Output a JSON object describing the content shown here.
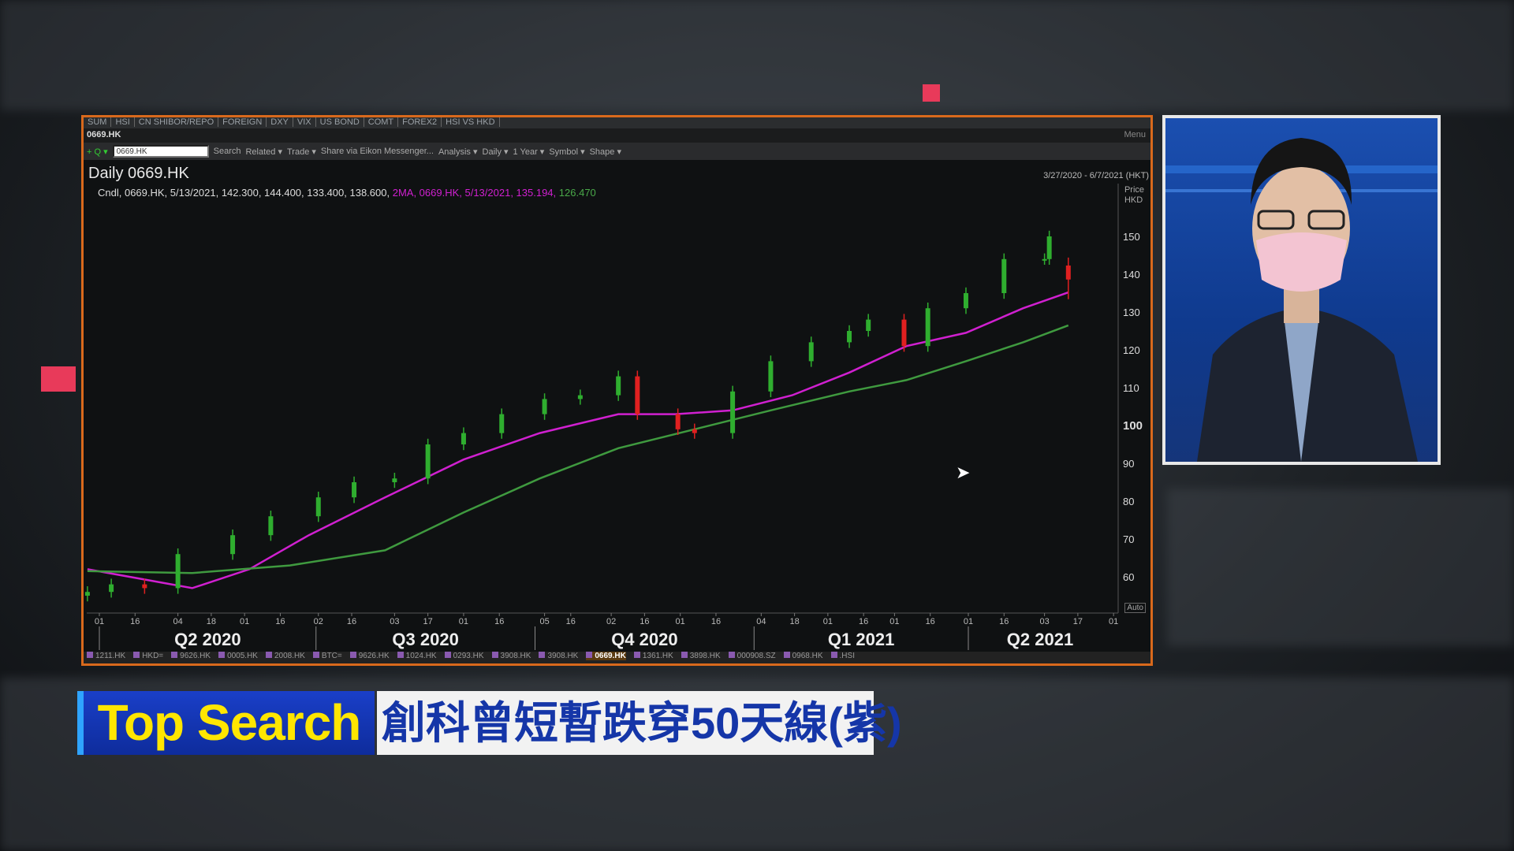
{
  "top_tabs": [
    "SUM",
    "HSI",
    "CN SHIBOR/REPO",
    "FOREIGN",
    "DXY",
    "VIX",
    "US BOND",
    "COMT",
    "FOREX2",
    "HSI VS HKD"
  ],
  "window_title": "0669.HK",
  "menu_label": "Menu",
  "toolbar": {
    "ric_value": "0669.HK",
    "items": [
      "Search",
      "Related ▾",
      "Trade ▾",
      "Share via Eikon Messenger...",
      "Analysis ▾",
      "Daily ▾",
      "1 Year ▾",
      "Symbol ▾",
      "Shape ▾"
    ]
  },
  "chart_title": "Daily 0669.HK",
  "date_range": "3/27/2020 - 6/7/2021 (HKT)",
  "legend": {
    "candle": "Cndl, 0669.HK, 5/13/2021, 142.300, 144.400, 133.400, 138.600,",
    "ma": "2MA, 0669.HK, 5/13/2021, 135.194,",
    "ma2": "126.470"
  },
  "price_header": [
    "Price",
    "HKD"
  ],
  "auto_label": "Auto",
  "bottom_tabs": [
    "1211.HK",
    "HKD=",
    "9626.HK",
    "0005.HK",
    "2008.HK",
    "BTC=",
    "9626.HK",
    "1024.HK",
    "0293.HK",
    "3908.HK",
    "3908.HK",
    "0669.HK",
    "1361.HK",
    "3898.HK",
    "000908.SZ",
    "0968.HK",
    ".HSI"
  ],
  "active_bottom_tab": "0669.HK",
  "caption": {
    "brand": "Top Search",
    "headline": "創科曾短暫跌穿50天線(紫)"
  },
  "chart_data": {
    "type": "candlestick",
    "ticker": "0669.HK",
    "ylim": [
      50,
      164
    ],
    "yticks": [
      60,
      70,
      80,
      90,
      100,
      110,
      120,
      130,
      140,
      150
    ],
    "quarters": [
      {
        "label": "Q2 2020",
        "start": "2020-04-01"
      },
      {
        "label": "Q3 2020",
        "start": "2020-07-01"
      },
      {
        "label": "Q4 2020",
        "start": "2020-10-01"
      },
      {
        "label": "Q1 2021",
        "start": "2021-01-01"
      },
      {
        "label": "Q2 2021",
        "start": "2021-04-01"
      }
    ],
    "xticks": [
      [
        "2020-04-01",
        "01"
      ],
      [
        "2020-04-16",
        "16"
      ],
      [
        "2020-05-04",
        "04"
      ],
      [
        "2020-05-18",
        "18"
      ],
      [
        "2020-06-01",
        "01"
      ],
      [
        "2020-06-16",
        "16"
      ],
      [
        "2020-07-02",
        "02"
      ],
      [
        "2020-07-16",
        "16"
      ],
      [
        "2020-08-03",
        "03"
      ],
      [
        "2020-08-17",
        "17"
      ],
      [
        "2020-09-01",
        "01"
      ],
      [
        "2020-09-16",
        "16"
      ],
      [
        "2020-10-05",
        "05"
      ],
      [
        "2020-10-16",
        "16"
      ],
      [
        "2020-11-02",
        "02"
      ],
      [
        "2020-11-16",
        "16"
      ],
      [
        "2020-12-01",
        "01"
      ],
      [
        "2020-12-16",
        "16"
      ],
      [
        "2021-01-04",
        "04"
      ],
      [
        "2021-01-18",
        "18"
      ],
      [
        "2021-02-01",
        "01"
      ],
      [
        "2021-02-16",
        "16"
      ],
      [
        "2021-03-01",
        "01"
      ],
      [
        "2021-03-16",
        "16"
      ],
      [
        "2021-04-01",
        "01"
      ],
      [
        "2021-04-16",
        "16"
      ],
      [
        "2021-05-03",
        "03"
      ],
      [
        "2021-05-17",
        "17"
      ],
      [
        "2021-06-01",
        "01"
      ]
    ],
    "closes": [
      [
        "2020-03-27",
        56
      ],
      [
        "2020-04-06",
        58
      ],
      [
        "2020-04-20",
        57
      ],
      [
        "2020-05-04",
        66
      ],
      [
        "2020-05-27",
        71
      ],
      [
        "2020-06-12",
        76
      ],
      [
        "2020-07-02",
        81
      ],
      [
        "2020-07-17",
        85
      ],
      [
        "2020-08-03",
        86
      ],
      [
        "2020-08-17",
        95
      ],
      [
        "2020-09-01",
        98
      ],
      [
        "2020-09-17",
        103
      ],
      [
        "2020-10-05",
        107
      ],
      [
        "2020-10-20",
        108
      ],
      [
        "2020-11-05",
        113
      ],
      [
        "2020-11-13",
        103
      ],
      [
        "2020-11-30",
        99
      ],
      [
        "2020-12-07",
        98
      ],
      [
        "2020-12-23",
        109
      ],
      [
        "2021-01-08",
        117
      ],
      [
        "2021-01-25",
        122
      ],
      [
        "2021-02-10",
        125
      ],
      [
        "2021-02-18",
        128
      ],
      [
        "2021-03-05",
        121
      ],
      [
        "2021-03-15",
        131
      ],
      [
        "2021-03-31",
        135
      ],
      [
        "2021-04-16",
        144
      ],
      [
        "2021-05-03",
        144
      ],
      [
        "2021-05-05",
        150
      ]
    ],
    "last_candle": {
      "date": "2021-05-13",
      "open": 142.3,
      "high": 144.4,
      "low": 133.4,
      "close": 138.6
    },
    "series": [
      {
        "color": "#d020d0",
        "values": [
          [
            "2020-03-27",
            62
          ],
          [
            "2020-05-10",
            57
          ],
          [
            "2020-06-03",
            62
          ],
          [
            "2020-06-28",
            71
          ],
          [
            "2020-07-30",
            81
          ],
          [
            "2020-09-01",
            91
          ],
          [
            "2020-10-03",
            98
          ],
          [
            "2020-11-05",
            103
          ],
          [
            "2020-11-29",
            103
          ],
          [
            "2020-12-23",
            104
          ],
          [
            "2021-01-17",
            108
          ],
          [
            "2021-02-10",
            114
          ],
          [
            "2021-03-06",
            121
          ],
          [
            "2021-03-31",
            124.5
          ],
          [
            "2021-04-24",
            131
          ],
          [
            "2021-05-13",
            135.194
          ]
        ]
      },
      {
        "color": "#3f9a3f",
        "values": [
          [
            "2020-03-27",
            61.5
          ],
          [
            "2020-05-10",
            61
          ],
          [
            "2020-06-20",
            63
          ],
          [
            "2020-07-30",
            67
          ],
          [
            "2020-09-01",
            77
          ],
          [
            "2020-10-03",
            86
          ],
          [
            "2020-11-05",
            94
          ],
          [
            "2020-12-07",
            99
          ],
          [
            "2021-01-08",
            104
          ],
          [
            "2021-02-10",
            109
          ],
          [
            "2021-03-06",
            112
          ],
          [
            "2021-03-31",
            117
          ],
          [
            "2021-04-24",
            122
          ],
          [
            "2021-05-13",
            126.47
          ]
        ]
      }
    ],
    "up_color": "#2fae2f",
    "down_color": "#e02020"
  }
}
